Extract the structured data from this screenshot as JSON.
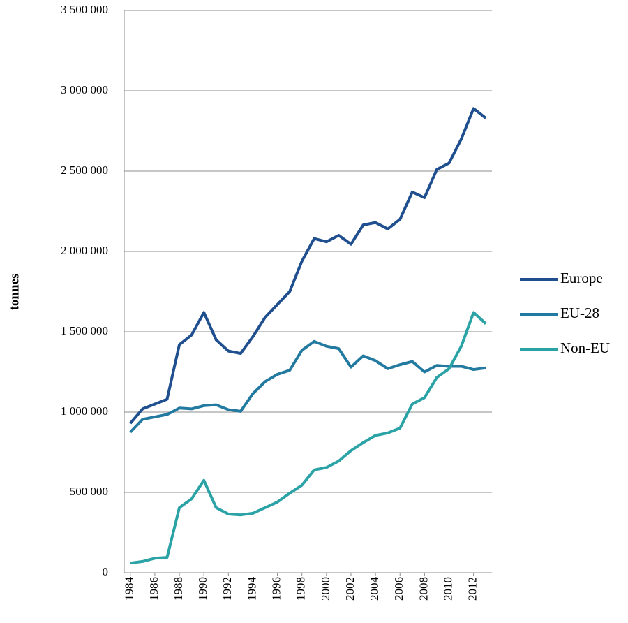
{
  "chart_data": {
    "type": "line",
    "y_label": "tonnes",
    "x": [
      1984,
      1985,
      1986,
      1987,
      1988,
      1989,
      1990,
      1991,
      1992,
      1993,
      1994,
      1995,
      1996,
      1997,
      1998,
      1999,
      2000,
      2001,
      2002,
      2003,
      2004,
      2005,
      2006,
      2007,
      2008,
      2009,
      2010,
      2011,
      2012,
      2013
    ],
    "xlim": [
      1983.5,
      2013.5
    ],
    "xticks": [
      1984,
      1986,
      1988,
      1990,
      1992,
      1994,
      1996,
      1998,
      2000,
      2002,
      2004,
      2006,
      2008,
      2010,
      2012
    ],
    "ylim": [
      0,
      3500000
    ],
    "yticks": [
      {
        "value": 0,
        "label": "0"
      },
      {
        "value": 500000,
        "label": "500 000"
      },
      {
        "value": 1000000,
        "label": "1 000 000"
      },
      {
        "value": 1500000,
        "label": "1 500 000"
      },
      {
        "value": 2000000,
        "label": "2 000 000"
      },
      {
        "value": 2500000,
        "label": "2 500 000"
      },
      {
        "value": 3000000,
        "label": "3 000 000"
      },
      {
        "value": 3500000,
        "label": "3 500 000"
      }
    ],
    "grid": true,
    "legend": "right",
    "series": [
      {
        "name": "Europe",
        "color": "#1f4f8e",
        "values": [
          930000,
          1020000,
          1050000,
          1080000,
          1420000,
          1480000,
          1620000,
          1450000,
          1380000,
          1365000,
          1470000,
          1590000,
          1670000,
          1750000,
          1940000,
          2080000,
          2060000,
          2100000,
          2045000,
          2165000,
          2180000,
          2140000,
          2200000,
          2370000,
          2335000,
          2510000,
          2550000,
          2700000,
          2890000,
          2830000
        ]
      },
      {
        "name": "EU-28",
        "color": "#237aa0",
        "values": [
          875000,
          955000,
          970000,
          985000,
          1025000,
          1020000,
          1040000,
          1045000,
          1015000,
          1005000,
          1115000,
          1190000,
          1235000,
          1260000,
          1385000,
          1440000,
          1410000,
          1395000,
          1280000,
          1350000,
          1320000,
          1270000,
          1295000,
          1315000,
          1250000,
          1290000,
          1285000,
          1285000,
          1265000,
          1275000
        ]
      },
      {
        "name": "Non-EU",
        "color": "#2ba3a6",
        "values": [
          60000,
          70000,
          90000,
          95000,
          405000,
          460000,
          575000,
          405000,
          365000,
          360000,
          370000,
          405000,
          440000,
          495000,
          545000,
          640000,
          655000,
          695000,
          760000,
          810000,
          855000,
          870000,
          900000,
          1050000,
          1090000,
          1215000,
          1270000,
          1410000,
          1620000,
          1550000
        ]
      }
    ]
  }
}
